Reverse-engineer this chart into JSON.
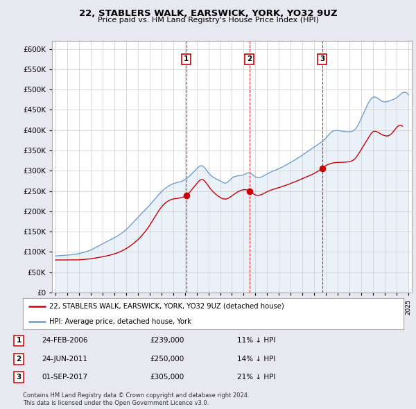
{
  "title": "22, STABLERS WALK, EARSWICK, YORK, YO32 9UZ",
  "subtitle": "Price paid vs. HM Land Registry's House Price Index (HPI)",
  "sales": [
    {
      "label": "1",
      "date_num": 2006.12,
      "price": 239000,
      "note": "24-FEB-2006",
      "pct": "11% ↓ HPI"
    },
    {
      "label": "2",
      "date_num": 2011.48,
      "price": 250000,
      "note": "24-JUN-2011",
      "pct": "14% ↓ HPI"
    },
    {
      "label": "3",
      "date_num": 2017.67,
      "price": 305000,
      "note": "01-SEP-2017",
      "pct": "21% ↓ HPI"
    }
  ],
  "legend_line1": "22, STABLERS WALK, EARSWICK, YORK, YO32 9UZ (detached house)",
  "legend_line2": "HPI: Average price, detached house, York",
  "footer1": "Contains HM Land Registry data © Crown copyright and database right 2024.",
  "footer2": "This data is licensed under the Open Government Licence v3.0.",
  "red_color": "#cc0000",
  "blue_color": "#6699cc",
  "blue_fill": "#dce8f5",
  "bg_color": "#e8e8f0",
  "plot_bg": "#ffffff",
  "ylim": [
    0,
    620000
  ],
  "yticks": [
    0,
    50000,
    100000,
    150000,
    200000,
    250000,
    300000,
    350000,
    400000,
    450000,
    500000,
    550000,
    600000
  ],
  "xlim_start": 1994.7,
  "xlim_end": 2025.3
}
